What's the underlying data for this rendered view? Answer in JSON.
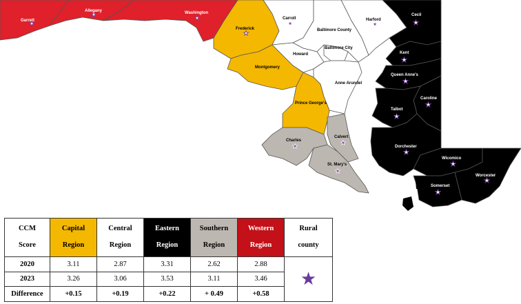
{
  "colors": {
    "capital": "#f5b800",
    "central": "#ffffff",
    "eastern": "#000000",
    "southern": "#bdb7b1",
    "western": "#e0202a",
    "rural_star": "#7a3fa0"
  },
  "counties": {
    "garrett": "Garrett",
    "allegany": "Allegany",
    "washington": "Washington",
    "frederick": "Frederick",
    "carroll": "Carroll",
    "baltimore_county": "Baltimore County",
    "harford": "Harford",
    "cecil": "Cecil",
    "howard": "Howard",
    "baltimore_city": "Baltimore City",
    "montgomery": "Montgomery",
    "anne_arundel": "Anne Arundel",
    "kent": "Kent",
    "queen_annes": "Queen Anne's",
    "caroline": "Caroline",
    "talbot": "Talbot",
    "prince_georges": "Prince George's",
    "charles": "Charles",
    "calvert": "Calvert",
    "dorchester": "Dorchester",
    "st_marys": "St. Mary's",
    "wicomico": "Wicomico",
    "worcester": "Worcester",
    "somerset": "Somerset"
  },
  "table": {
    "header": {
      "score_line1": "CCM",
      "score_line2": "Score",
      "capital_line1": "Capital",
      "capital_line2": "Region",
      "central_line1": "Central",
      "central_line2": "Region",
      "eastern_line1": "Eastern",
      "eastern_line2": "Region",
      "southern_line1": "Southern",
      "southern_line2": "Region",
      "western_line1": "Western",
      "western_line2": "Region",
      "rural_line1": "Rural",
      "rural_line2": "county"
    },
    "rows": [
      {
        "label": "2020",
        "capital": "3.11",
        "central": "2.87",
        "eastern": "3.31",
        "southern": "2.62",
        "western": "2.88"
      },
      {
        "label": "2023",
        "capital": "3.26",
        "central": "3.06",
        "eastern": "3.53",
        "southern": "3.11",
        "western": "3.46"
      },
      {
        "label": "Difference",
        "capital": "+0.15",
        "central": "+0.19",
        "eastern": "+0.22",
        "southern": "+ 0.49",
        "western": "+0.58"
      }
    ],
    "rural_symbol": "★"
  }
}
